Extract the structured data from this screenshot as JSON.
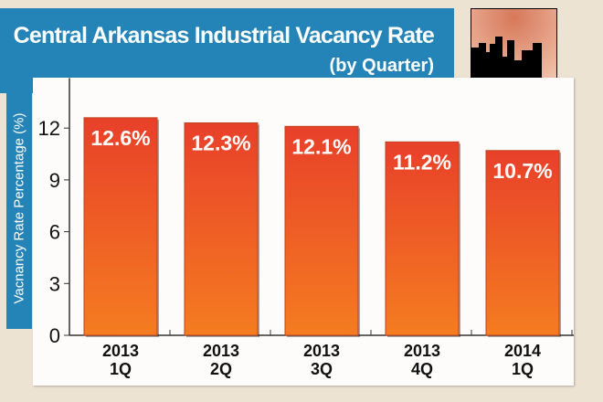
{
  "chart_data": {
    "type": "bar",
    "title": "Central Arkansas Industrial Vacancy Rate",
    "subtitle": "(by Quarter)",
    "ylabel": "Vacnancy Rate Percentage (%)",
    "xlabel": "",
    "categories": [
      [
        "2013",
        "1Q"
      ],
      [
        "2013",
        "2Q"
      ],
      [
        "2013",
        "3Q"
      ],
      [
        "2013",
        "4Q"
      ],
      [
        "2014",
        "1Q"
      ]
    ],
    "values": [
      12.6,
      12.3,
      12.1,
      11.2,
      10.7
    ],
    "data_labels": [
      "12.6%",
      "12.3%",
      "12.1%",
      "11.2%",
      "10.7%"
    ],
    "yticks": [
      0,
      3,
      6,
      9,
      12
    ],
    "ylim": [
      0,
      15
    ],
    "grid": false,
    "colors": {
      "bar_top": "#e8402a",
      "bar_bottom": "#f57c20",
      "banner": "#2484b8"
    }
  }
}
